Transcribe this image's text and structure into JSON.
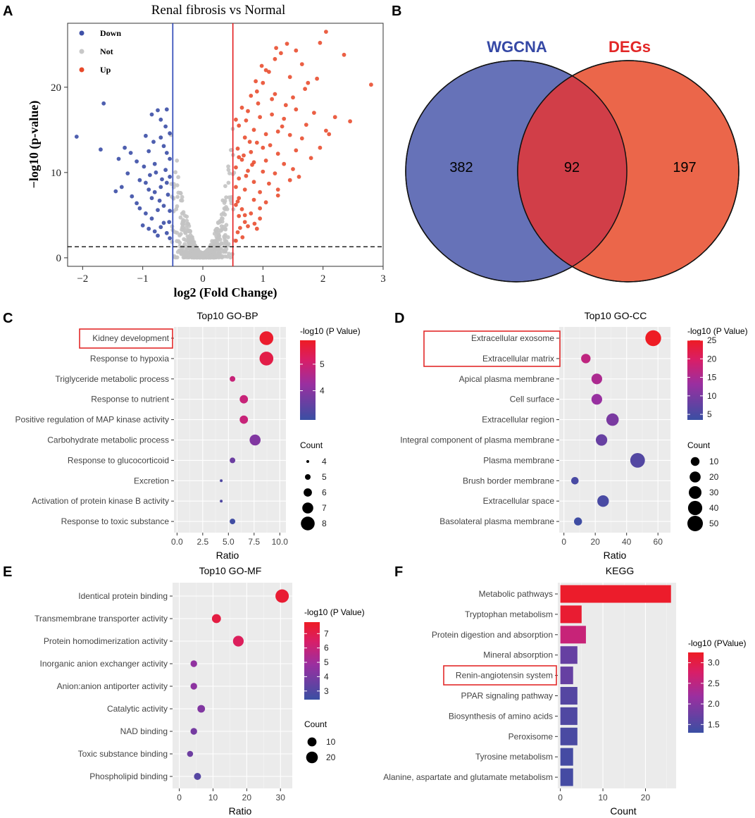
{
  "panel_letters": [
    "A",
    "B",
    "C",
    "D",
    "E",
    "F"
  ],
  "chart_data": [
    {
      "id": "A",
      "type": "scatter",
      "title": "Renal fibrosis vs Normal",
      "xlabel": "log2 (Fold Change)",
      "ylabel": "−log10 (p-value)",
      "xlim": [
        -2.25,
        3.0
      ],
      "ylim": [
        -1.0,
        27.5
      ],
      "xticks": [
        -2,
        -1,
        0,
        1,
        2,
        3
      ],
      "yticks": [
        0,
        10,
        20
      ],
      "tick_labels_x": [
        "−2",
        "−1",
        "0",
        "1",
        "2",
        "3"
      ],
      "tick_labels_y": [
        "0",
        "10",
        "20"
      ],
      "legend": [
        {
          "label": "Down",
          "color": "#3f51a8"
        },
        {
          "label": "Not",
          "color": "#c8c8c8"
        },
        {
          "label": "Up",
          "color": "#e8492a"
        }
      ],
      "fc_threshold": [
        -0.5,
        0.5
      ],
      "p_threshold": 1.3,
      "colors": {
        "down": "#3f51a8",
        "not": "#c3c3c3",
        "up": "#e8492a",
        "vline_down": "#2741b5",
        "vline_up": "#e31a1c"
      },
      "up_points": [
        [
          2.05,
          26.5
        ],
        [
          1.95,
          25.2
        ],
        [
          2.35,
          23.8
        ],
        [
          2.8,
          20.3
        ],
        [
          1.4,
          25.1
        ],
        [
          1.55,
          24.3
        ],
        [
          1.3,
          24.0
        ],
        [
          1.2,
          23.3
        ],
        [
          1.05,
          22.0
        ],
        [
          1.65,
          22.7
        ],
        [
          1.1,
          21.8
        ],
        [
          1.45,
          21.2
        ],
        [
          1.75,
          20.5
        ],
        [
          1.9,
          21.0
        ],
        [
          1.0,
          20.5
        ],
        [
          0.9,
          19.5
        ],
        [
          0.8,
          19.0
        ],
        [
          1.2,
          19.2
        ],
        [
          1.5,
          18.8
        ],
        [
          1.7,
          19.8
        ],
        [
          1.55,
          17.4
        ],
        [
          0.65,
          17.6
        ],
        [
          0.75,
          17.2
        ],
        [
          0.55,
          16.2
        ],
        [
          0.95,
          16.5
        ],
        [
          1.15,
          16.8
        ],
        [
          1.35,
          16.3
        ],
        [
          1.85,
          17.0
        ],
        [
          2.2,
          16.5
        ],
        [
          2.45,
          16.0
        ],
        [
          2.05,
          14.9
        ],
        [
          0.6,
          15.5
        ],
        [
          0.85,
          15.0
        ],
        [
          1.05,
          14.5
        ],
        [
          1.25,
          14.8
        ],
        [
          0.7,
          14.1
        ],
        [
          0.9,
          13.5
        ],
        [
          1.45,
          14.4
        ],
        [
          1.65,
          14.0
        ],
        [
          2.1,
          14.5
        ],
        [
          0.58,
          12.8
        ],
        [
          0.8,
          12.4
        ],
        [
          1.0,
          12.9
        ],
        [
          1.25,
          12.2
        ],
        [
          1.55,
          12.6
        ],
        [
          0.65,
          11.5
        ],
        [
          0.85,
          11.2
        ],
        [
          1.05,
          11.4
        ],
        [
          1.35,
          11.0
        ],
        [
          1.8,
          11.7
        ],
        [
          0.55,
          10.6
        ],
        [
          0.75,
          10.2
        ],
        [
          1.0,
          10.1
        ],
        [
          1.2,
          9.9
        ],
        [
          1.5,
          10.4
        ],
        [
          0.6,
          9.3
        ],
        [
          0.85,
          8.9
        ],
        [
          1.1,
          8.7
        ],
        [
          1.45,
          9.1
        ],
        [
          0.55,
          8.3
        ],
        [
          0.7,
          8.0
        ],
        [
          0.95,
          7.7
        ],
        [
          1.25,
          7.3
        ],
        [
          0.6,
          7.0
        ],
        [
          0.85,
          6.8
        ],
        [
          1.05,
          6.5
        ],
        [
          0.55,
          6.2
        ],
        [
          0.65,
          5.7
        ],
        [
          0.8,
          5.2
        ],
        [
          0.95,
          4.6
        ],
        [
          0.6,
          4.9
        ],
        [
          0.7,
          4.2
        ],
        [
          0.62,
          3.5
        ],
        [
          0.58,
          3.0
        ],
        [
          0.75,
          3.7
        ],
        [
          0.66,
          2.4
        ],
        [
          0.9,
          3.4
        ],
        [
          0.55,
          2.0
        ],
        [
          1.25,
          8.0
        ],
        [
          1.6,
          9.5
        ],
        [
          0.78,
          13.6
        ],
        [
          0.72,
          16.1
        ],
        [
          0.92,
          18.1
        ],
        [
          1.38,
          17.9
        ],
        [
          1.15,
          18.6
        ],
        [
          0.98,
          22.5
        ],
        [
          1.22,
          24.6
        ],
        [
          0.88,
          20.7
        ],
        [
          0.68,
          12.0
        ],
        [
          1.12,
          13.2
        ],
        [
          0.82,
          10.9
        ],
        [
          0.6,
          11.8
        ],
        [
          1.32,
          15.4
        ],
        [
          0.72,
          9.6
        ],
        [
          0.95,
          5.8
        ],
        [
          1.72,
          15.6
        ],
        [
          1.95,
          12.9
        ],
        [
          0.58,
          6.6
        ],
        [
          0.7,
          5.0
        ],
        [
          0.86,
          4.0
        ]
      ],
      "down_points": [
        [
          -2.1,
          14.2
        ],
        [
          -1.65,
          18.1
        ],
        [
          -1.7,
          12.7
        ],
        [
          -1.4,
          11.6
        ],
        [
          -1.3,
          12.9
        ],
        [
          -1.45,
          7.8
        ],
        [
          -1.35,
          8.3
        ],
        [
          -1.25,
          9.9
        ],
        [
          -1.1,
          11.3
        ],
        [
          -1.2,
          12.3
        ],
        [
          -0.95,
          14.3
        ],
        [
          -0.9,
          12.5
        ],
        [
          -0.8,
          11.0
        ],
        [
          -0.7,
          14.1
        ],
        [
          -0.65,
          13.1
        ],
        [
          -0.6,
          17.4
        ],
        [
          -0.75,
          17.3
        ],
        [
          -0.7,
          16.2
        ],
        [
          -0.85,
          16.8
        ],
        [
          -0.55,
          14.6
        ],
        [
          -0.6,
          12.3
        ],
        [
          -0.55,
          11.6
        ],
        [
          -1.05,
          9.1
        ],
        [
          -0.95,
          8.8
        ],
        [
          -0.9,
          8.0
        ],
        [
          -0.8,
          7.7
        ],
        [
          -0.7,
          8.3
        ],
        [
          -0.6,
          8.8
        ],
        [
          -0.55,
          9.5
        ],
        [
          -1.1,
          6.4
        ],
        [
          -1.05,
          5.8
        ],
        [
          -0.95,
          5.2
        ],
        [
          -0.85,
          4.6
        ],
        [
          -0.75,
          5.6
        ],
        [
          -0.65,
          6.1
        ],
        [
          -0.55,
          5.5
        ],
        [
          -1.0,
          3.8
        ],
        [
          -0.9,
          3.4
        ],
        [
          -0.8,
          3.1
        ],
        [
          -0.7,
          3.6
        ],
        [
          -0.6,
          2.9
        ],
        [
          -0.55,
          2.3
        ],
        [
          -0.65,
          4.1
        ],
        [
          -0.75,
          2.6
        ],
        [
          -0.85,
          7.0
        ],
        [
          -0.62,
          10.3
        ],
        [
          -0.58,
          7.4
        ],
        [
          -0.68,
          9.2
        ],
        [
          -0.78,
          10.0
        ],
        [
          -0.88,
          9.7
        ],
        [
          -1.18,
          7.2
        ],
        [
          -0.98,
          10.7
        ],
        [
          -0.72,
          6.7
        ],
        [
          -0.56,
          4.2
        ],
        [
          -0.82,
          13.6
        ],
        [
          -0.62,
          15.4
        ]
      ],
      "not_count": 700
    },
    {
      "id": "B",
      "type": "venn",
      "sets": [
        {
          "label": "WGCNA",
          "color": "#6672b8",
          "label_color": "#3548a5"
        },
        {
          "label": "DEGs",
          "color": "#eb664a",
          "label_color": "#e22626"
        }
      ],
      "intersection_color": "#d13e48",
      "values": {
        "WGCNA_only": "382",
        "intersection": "92",
        "DEGs_only": "197"
      }
    },
    {
      "id": "C",
      "type": "dot",
      "title": "Top10 GO-BP",
      "xlabel": "Ratio",
      "xlim": [
        -0.3,
        10.6
      ],
      "xticks": [
        0.0,
        2.5,
        5.0,
        7.5,
        10.0
      ],
      "tick_labels_x": [
        "0.0",
        "2.5",
        "5.0",
        "7.5",
        "10.0"
      ],
      "categories": [
        "Kidney development",
        "Response to hypoxia",
        "Triglyceride metabolic process",
        "Response to nutrient",
        "Positive regulation of MAP kinase activity",
        "Carbohydrate metabolic process",
        "Response to glucocorticoid",
        "Excretion",
        "Activation of protein kinase B activity",
        "Response to toxic substance"
      ],
      "ratio": [
        8.7,
        8.7,
        5.4,
        6.5,
        6.5,
        7.6,
        5.4,
        4.3,
        4.3,
        5.4
      ],
      "count": [
        8,
        8,
        5,
        6,
        6,
        7,
        5,
        4,
        4,
        5
      ],
      "neglog10p": [
        5.8,
        5.5,
        4.9,
        4.9,
        4.9,
        3.9,
        3.6,
        3.2,
        3.2,
        3.0
      ],
      "highlight": [
        "Kidney development"
      ],
      "colorbar": {
        "title": "-log10 (P Value)",
        "range": [
          2.9,
          5.9
        ],
        "ticks": [
          4,
          5
        ],
        "tick_labels": [
          "4",
          "5"
        ]
      },
      "size_legend": {
        "title": "Count",
        "values": [
          4,
          5,
          6,
          7,
          8
        ],
        "labels": [
          "4",
          "5",
          "6",
          "7",
          "8"
        ]
      }
    },
    {
      "id": "D",
      "type": "dot",
      "title": "Top10 GO-CC",
      "xlabel": "Ratio",
      "xlim": [
        -3,
        68
      ],
      "xticks": [
        0,
        20,
        40,
        60
      ],
      "tick_labels_x": [
        "0",
        "20",
        "40",
        "60"
      ],
      "categories": [
        "Extracellular exosome",
        "Extracellular matrix",
        "Apical plasma membrane",
        "Cell surface",
        "Extracellular region",
        "Integral component of plasma membrane",
        "Plasma membrane",
        "Brush border membrane",
        "Extracellular space",
        "Basolateral plasma membrane"
      ],
      "ratio": [
        57,
        14,
        21,
        21,
        31,
        24,
        47,
        7,
        25,
        9
      ],
      "count": [
        52,
        13,
        19,
        19,
        28,
        22,
        43,
        6,
        23,
        8
      ],
      "neglog10p": [
        25,
        17,
        15,
        13,
        10,
        8,
        6,
        5,
        5,
        4
      ],
      "highlight": [
        "Extracellular exosome",
        "Extracellular matrix"
      ],
      "colorbar": {
        "title": "-log10 (P Value)",
        "range": [
          3.5,
          25
        ],
        "ticks": [
          5,
          10,
          15,
          20,
          25
        ],
        "tick_labels": [
          "5",
          "10",
          "15",
          "20",
          "25"
        ]
      },
      "size_legend": {
        "title": "Count",
        "values": [
          10,
          20,
          30,
          40,
          50
        ],
        "labels": [
          "10",
          "20",
          "30",
          "40",
          "50"
        ]
      }
    },
    {
      "id": "E",
      "type": "dot",
      "title": "Top10 GO-MF",
      "xlabel": "Ratio",
      "xlim": [
        -2,
        33.5
      ],
      "xticks": [
        0,
        10,
        20,
        30
      ],
      "tick_labels_x": [
        "0",
        "10",
        "20",
        "30"
      ],
      "categories": [
        "Identical protein binding",
        "Transmembrane transporter activity",
        "Protein homodimerization activity",
        "Inorganic anion exchanger activity",
        "Anion:anion antiporter activity",
        "Catalytic activity",
        "NAD binding",
        "Toxic substance binding",
        "Phospholipid binding"
      ],
      "ratio": [
        30.5,
        11,
        17.5,
        4.3,
        4.3,
        6.5,
        4.3,
        3.2,
        5.4
      ],
      "count": [
        28,
        10,
        16,
        4,
        4,
        6,
        4,
        3,
        5
      ],
      "neglog10p": [
        7.5,
        7.2,
        6.7,
        4.6,
        4.5,
        4.2,
        3.9,
        3.7,
        3.1
      ],
      "colorbar": {
        "title": "-log10 (P Value)",
        "range": [
          2.4,
          7.8
        ],
        "ticks": [
          3,
          4,
          5,
          6,
          7
        ],
        "tick_labels": [
          "3",
          "4",
          "5",
          "6",
          "7"
        ]
      },
      "size_legend": {
        "title": "Count",
        "values": [
          10,
          20
        ],
        "labels": [
          "10",
          "20"
        ]
      }
    },
    {
      "id": "F",
      "type": "bar",
      "orientation": "horizontal",
      "title": "KEGG",
      "xlabel": "Count",
      "xlim": [
        -0.6,
        27.2
      ],
      "xticks": [
        0,
        10,
        20
      ],
      "tick_labels_x": [
        "0",
        "10",
        "20"
      ],
      "categories": [
        "Metabolic pathways",
        "Tryptophan metabolism",
        "Protein digestion and absorption",
        "Mineral absorption",
        "Renin-angiotensin system",
        "PPAR signaling pathway",
        "Biosynthesis of amino acids",
        "Peroxisome",
        "Tyrosine metabolism",
        "Alanine, aspartate and glutamate metabolism"
      ],
      "values": [
        26,
        5,
        6,
        4,
        3,
        4,
        4,
        4,
        3,
        3
      ],
      "neglog10p": [
        3.2,
        3.15,
        2.6,
        1.7,
        1.7,
        1.55,
        1.5,
        1.45,
        1.4,
        1.4
      ],
      "highlight": [
        "Renin-angiotensin system"
      ],
      "colorbar": {
        "title": "-log10 (PValue)",
        "range": [
          1.3,
          3.25
        ],
        "ticks": [
          1.5,
          2.0,
          2.5,
          3.0
        ],
        "tick_labels": [
          "1.5",
          "2.0",
          "2.5",
          "3.0"
        ]
      }
    }
  ]
}
